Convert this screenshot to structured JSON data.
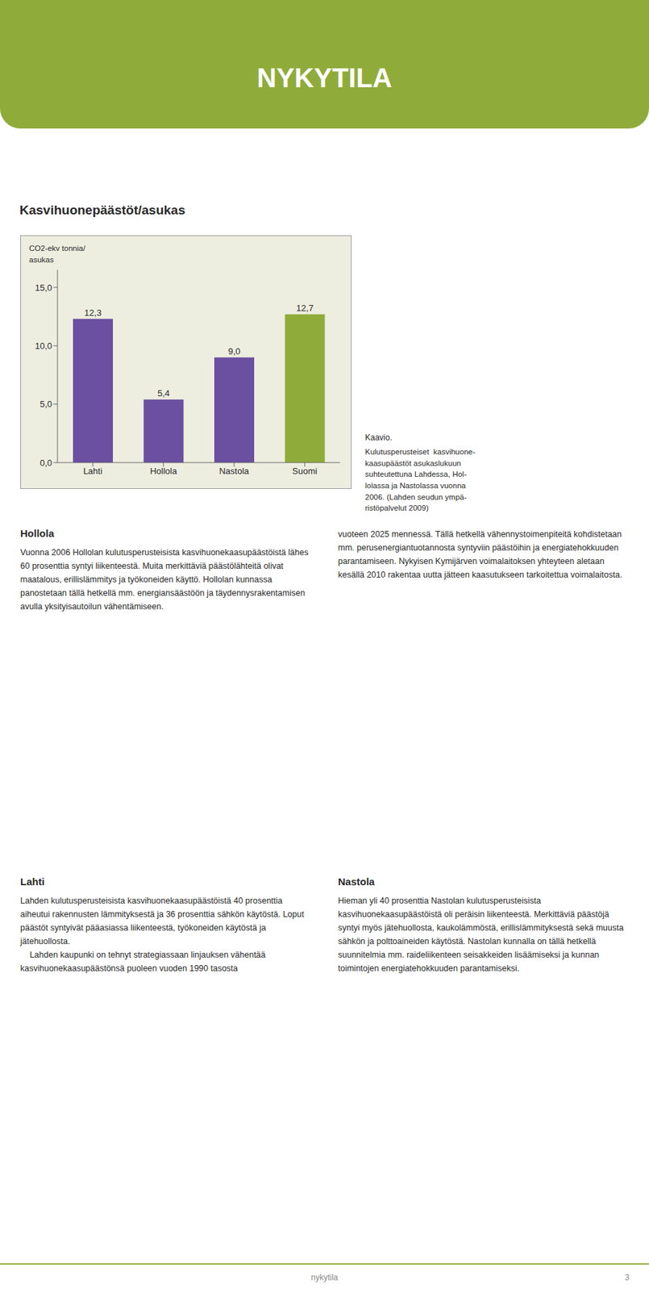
{
  "page_title": "NYKYTILA",
  "chart_data": {
    "type": "bar",
    "title": "Kasvihuonepäästöt/asukas",
    "ylabel": [
      "CO2-ekv tonnia/",
      "asukas"
    ],
    "categories": [
      "Lahti",
      "Hollola",
      "Nastola",
      "Suomi"
    ],
    "values": [
      12.3,
      5.4,
      9.0,
      12.7
    ],
    "value_labels": [
      "12,3",
      "5,4",
      "9,0",
      "12,7"
    ],
    "data_labels": true,
    "colors": [
      "#6b4fa0",
      "#6b4fa0",
      "#6b4fa0",
      "#8fac3a"
    ],
    "ylim": [
      0,
      16.5
    ],
    "yticks": [
      {
        "value": 0,
        "label": "0,0"
      },
      {
        "value": 5,
        "label": "5,0"
      },
      {
        "value": 10,
        "label": "10,0"
      },
      {
        "value": 15,
        "label": "15,0"
      }
    ],
    "grid": false
  },
  "caption": {
    "title": "Kaavio.",
    "lines": [
      "Kulutusperusteiset  kasvihuone-",
      "kaasupäästöt asukaslukuun",
      "suhteutettuna Lahdessa, Hol-",
      "lolassa ja Nastolassa vuonna",
      "2006. (Lahden seudun ympä-",
      "ristöpalvelut 2009)"
    ]
  },
  "columns": [
    [
      {
        "heading": "Hollola"
      },
      {
        "text": "Vuonna 2006 Hollolan kulutusperusteisista kasvihuonekaasupäästöistä lähes 60 prosenttia syntyi liikenteestä. Muita merkittäviä päästölähteitä olivat maatalous, erillislämmitys ja työkoneiden käyttö. Hollolan kunnassa panostetaan tällä hetkellä mm. energiansäästöön ja täydennysrakentamisen avulla yksityisautoilun vähentämiseen."
      },
      {
        "heading": "Lahti"
      },
      {
        "text": "Lahden kulutusperusteisista kasvihuonekaasupäästöistä 40 prosenttia aiheutui rakennusten lämmityksestä ja 36 prosenttia sähkön käytöstä. Loput päästöt syntyivät pääasiassa liikenteestä, työkoneiden käytöstä ja jätehuollosta.\n    Lahden kaupunki on tehnyt strategiassaan linjauksen vähentää kasvihuonekaasupäästönsä puoleen vuoden 1990 tasosta"
      }
    ],
    [
      {
        "text": "vuoteen 2025 mennessä. Tällä hetkellä vähennystoimenpiteitä kohdistetaan mm. perusenergiantuotannosta syntyviin päästöihin ja energiatehokkuuden parantamiseen. Nykyisen Kymijärven voimalaitoksen yhteyteen aletaan kesällä 2010 rakentaa uutta jätteen kaasutukseen tarkoitettua voimalaitosta."
      },
      {
        "heading": "Nastola"
      },
      {
        "text": "Hieman yli 40 prosenttia Nastolan kulutusperusteisista kasvihuonekaasupäästöistä oli peräisin liikenteestä. Merkittäviä päästöjä syntyi myös jätehuollosta, kaukolämmöstä, erillislämmityksestä sekä muusta sähkön ja polttoaineiden käytöstä. Nastolan kunnalla on tällä hetkellä suunnitelmia mm. raideliikenteen seisakkeiden lisäämiseksi ja kunnan toimintojen energiatehokkuuden parantamiseksi."
      }
    ]
  ],
  "footer": {
    "label": "nykytila",
    "page_number": "3"
  }
}
